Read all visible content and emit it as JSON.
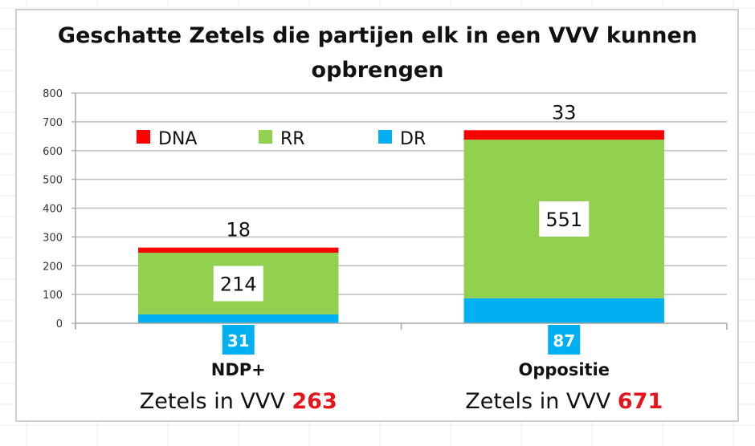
{
  "chart_data": {
    "type": "bar",
    "stacked": true,
    "title": "Geschatte Zetels die partijen elk in een VVV kunnen opbrengen",
    "title_lines": [
      "Geschatte Zetels die partijen elk in een VVV kunnen",
      "opbrengen"
    ],
    "xlabel": "",
    "ylabel": "",
    "ylim": [
      0,
      800
    ],
    "yticks": [
      0,
      100,
      200,
      300,
      400,
      500,
      600,
      700,
      800
    ],
    "grid": true,
    "legend_position": "top-left inside plot",
    "categories": [
      "NDP+",
      "Oppositie"
    ],
    "category_sublabels": [
      {
        "prefix": "Zetels in VVV",
        "total": "263"
      },
      {
        "prefix": "Zetels in VVV",
        "total": "671"
      }
    ],
    "series": [
      {
        "name": "DR",
        "color": "#00b0f0",
        "values": [
          31,
          87
        ]
      },
      {
        "name": "RR",
        "color": "#92d050",
        "values": [
          214,
          551
        ]
      },
      {
        "name": "DNA",
        "color": "#ff0000",
        "values": [
          18,
          33
        ]
      }
    ],
    "legend_order": [
      "DNA",
      "RR",
      "DR"
    ],
    "totals": [
      263,
      671
    ]
  },
  "colors": {
    "total_highlight": "#e8141b",
    "gridline": "#bfbfbf",
    "border": "#bfbfbf"
  }
}
